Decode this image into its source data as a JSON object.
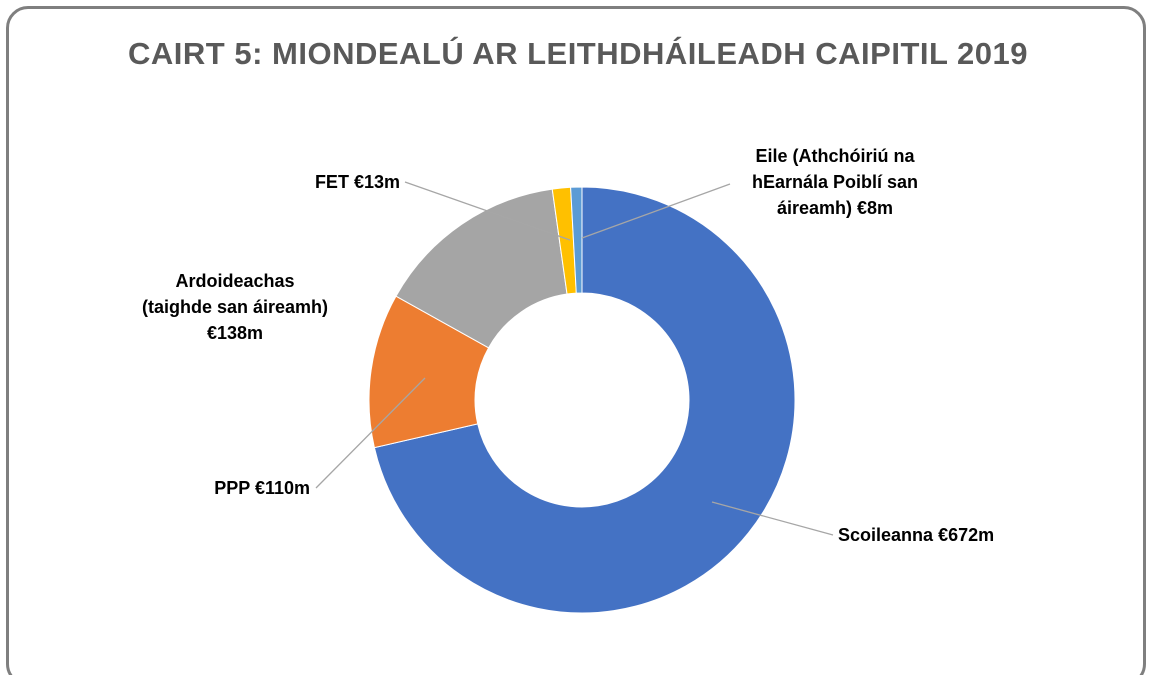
{
  "chart_data": {
    "type": "donut",
    "title": "CAIRT 5: MIONDEALÚ AR LEITHDHÁILEADH CAIPITIL 2019",
    "categories": [
      "Scoileanna",
      "PPP",
      "Ardoideachas (taighde san áireamh)",
      "FET",
      "Eile (Athchóiriú na hEarnála Poiblí san áireamh)"
    ],
    "values": [
      672,
      110,
      138,
      13,
      8
    ],
    "value_labels": [
      "€672m",
      "€110m",
      "€138m",
      "€13m",
      "€8m"
    ],
    "colors": [
      "#4472c4",
      "#ed7d31",
      "#a5a5a5",
      "#ffc000",
      "#5b9bd5"
    ]
  }
}
